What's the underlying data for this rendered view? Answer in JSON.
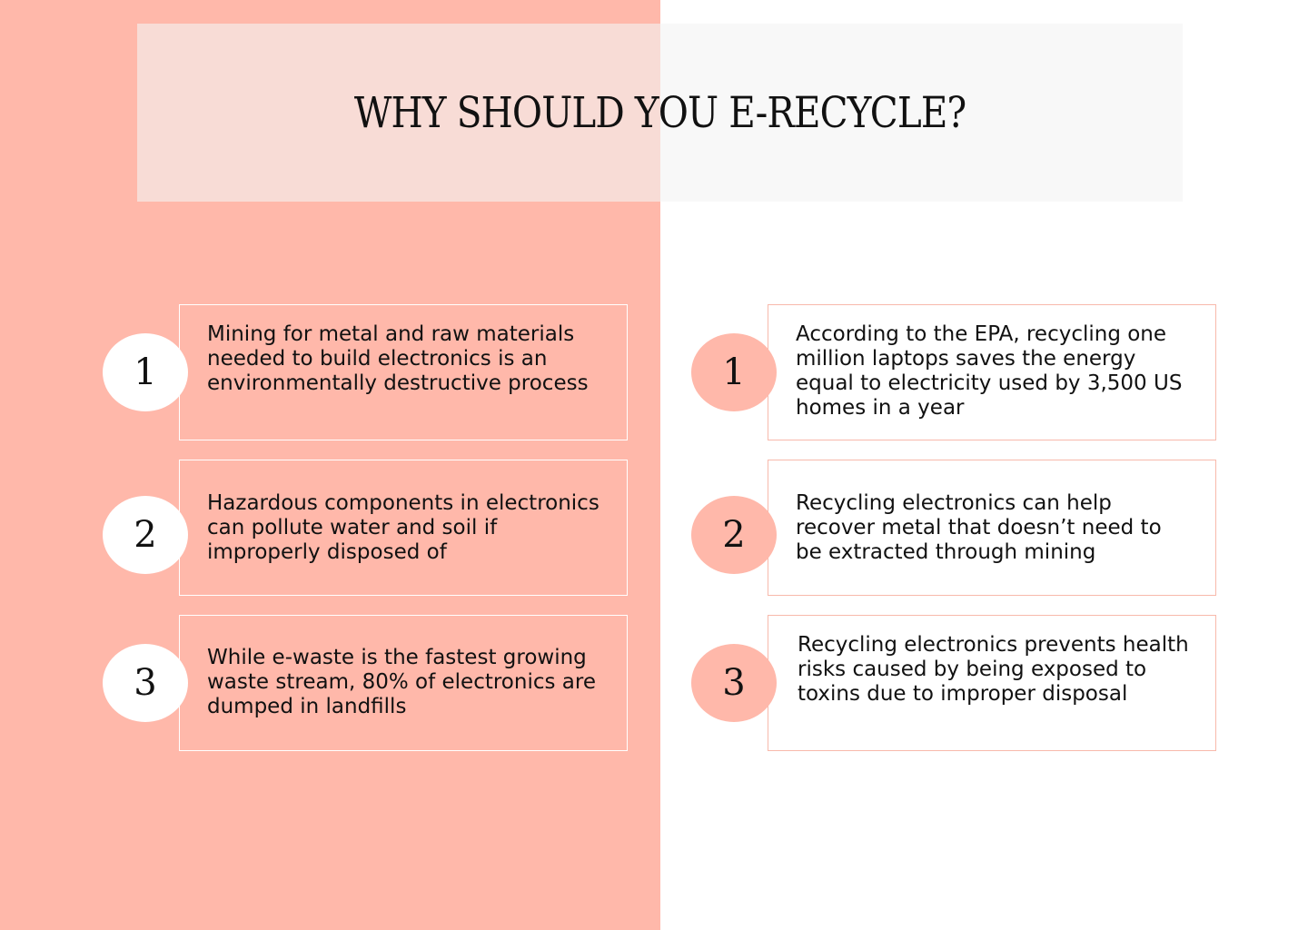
{
  "title": "WHY SHOULD YOU E-RECYCLE?",
  "colors": {
    "salmon": "#ffb8aa",
    "white": "#ffffff",
    "title_box": "#f7f7f7",
    "text": "#111111"
  },
  "left_column": {
    "items": [
      {
        "number": "1",
        "text": "Mining for metal and raw materials needed to build electronics is an environmentally destructive process"
      },
      {
        "number": "2",
        "text": "Hazardous components in electronics can pollute water and soil if improperly disposed of"
      },
      {
        "number": "3",
        "text": "While e-waste is the fastest growing waste stream, 80% of electronics are dumped in landfills"
      }
    ]
  },
  "right_column": {
    "items": [
      {
        "number": "1",
        "text": "According to the EPA, recycling one million laptops saves the energy equal to electricity used by 3,500 US homes in a year"
      },
      {
        "number": "2",
        "text": "Recycling electronics can help recover metal that doesn’t need to be extracted through mining"
      },
      {
        "number": "3",
        "text": "Recycling electronics prevents health risks caused by being exposed to toxins due to improper disposal"
      }
    ]
  }
}
